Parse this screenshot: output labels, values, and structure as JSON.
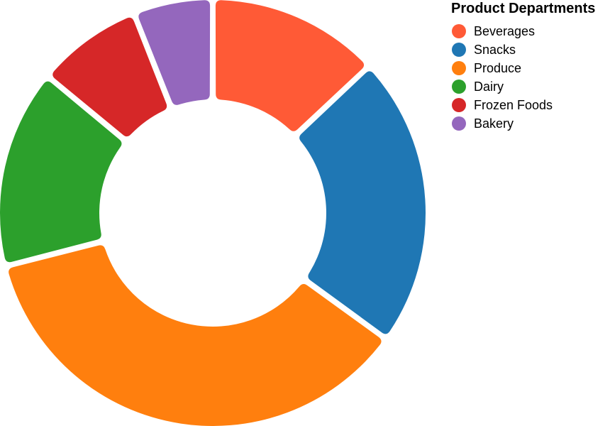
{
  "chart_data": {
    "type": "pie",
    "donut": true,
    "categories": [
      "Beverages",
      "Snacks",
      "Produce",
      "Dairy",
      "Frozen Foods",
      "Bakery"
    ],
    "values": [
      13,
      22,
      36,
      15,
      8,
      6
    ],
    "colors": [
      "#ff5a36",
      "#1f77b4",
      "#ff7f0e",
      "#2ca02c",
      "#d62728",
      "#9467bd"
    ],
    "legend": {
      "title": "Product Departments",
      "placement": "top-right"
    }
  }
}
